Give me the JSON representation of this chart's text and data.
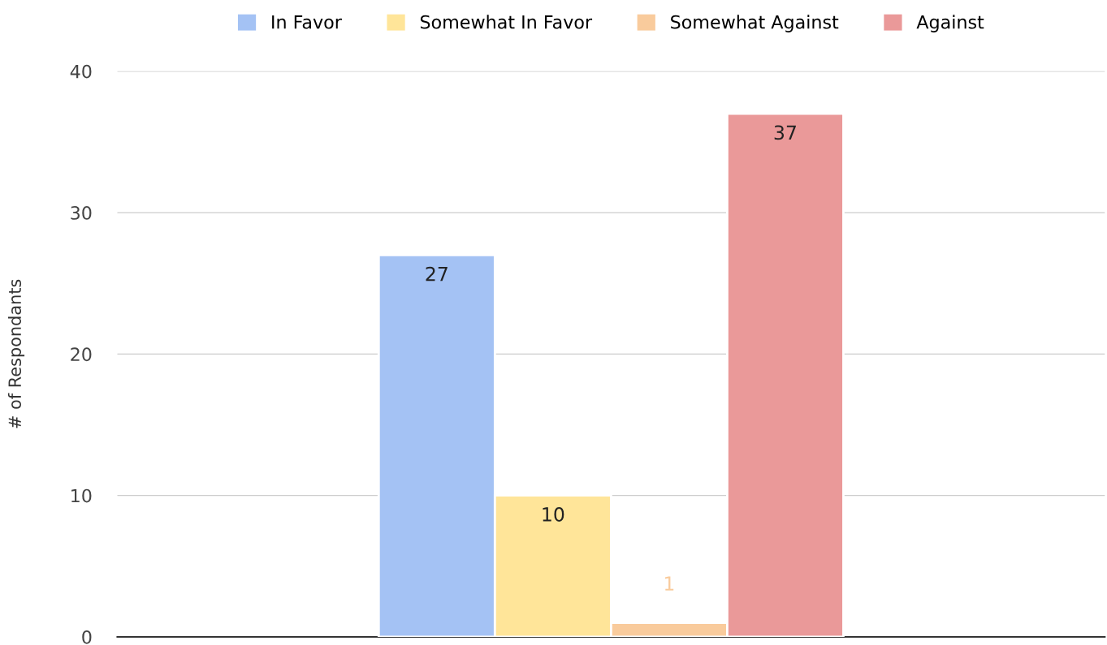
{
  "chart_data": {
    "type": "bar",
    "ylabel": "# of Respondants",
    "categories": [
      null
    ],
    "series": [
      {
        "name": "In Favor",
        "color": "#a4c2f4",
        "values": [
          27
        ]
      },
      {
        "name": "Somewhat In Favor",
        "color": "#ffe599",
        "values": [
          10
        ]
      },
      {
        "name": "Somewhat Against",
        "color": "#f9cb9c",
        "values": [
          1
        ]
      },
      {
        "name": "Against",
        "color": "#ea9999",
        "values": [
          37
        ]
      }
    ],
    "ylim": [
      0,
      40
    ],
    "yticks": [
      0,
      10,
      20,
      30,
      40
    ],
    "grid": "y",
    "legend": "top",
    "data_labels": true
  }
}
